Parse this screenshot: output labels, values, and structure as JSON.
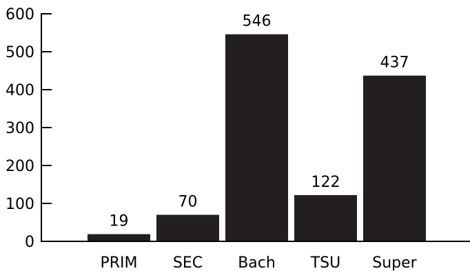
{
  "chart_data": {
    "type": "bar",
    "title": "",
    "xlabel": "",
    "ylabel": "",
    "categories": [
      "PRIM",
      "SEC",
      "Bach",
      "TSU",
      "Super"
    ],
    "values": [
      19,
      70,
      546,
      122,
      437
    ],
    "data_labels": [
      "19",
      "70",
      "546",
      "122",
      "437"
    ],
    "ylim": [
      0,
      600
    ],
    "y_ticks": [
      0,
      100,
      200,
      300,
      400,
      500,
      600
    ],
    "y_tick_labels": [
      "0",
      "100",
      "200",
      "300",
      "400",
      "500",
      "600"
    ],
    "grid": false,
    "legend": "none",
    "bar_color": "#231f20"
  }
}
